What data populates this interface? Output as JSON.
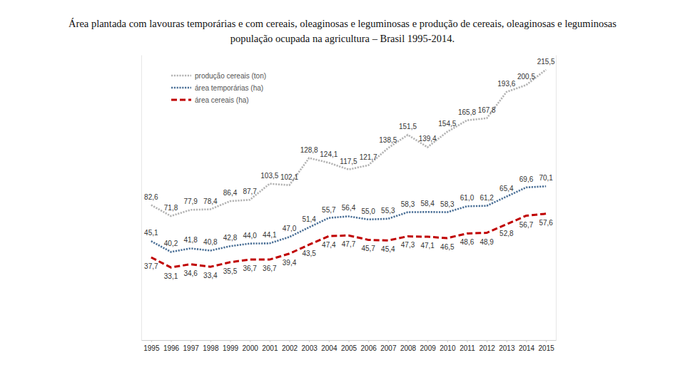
{
  "chart_data": {
    "type": "line",
    "title": [
      "Área plantada com lavouras temporárias e com cereais, oleaginosas e leguminosas e produção de cereais, oleaginosas e leguminosas",
      "população ocupada na agricultura – Brasil 1995-2014."
    ],
    "x": [
      1995,
      1996,
      1997,
      1998,
      1999,
      2000,
      2001,
      2002,
      2003,
      2004,
      2005,
      2006,
      2007,
      2008,
      2009,
      2010,
      2011,
      2012,
      2013,
      2014,
      2015
    ],
    "xlim": [
      1994.5,
      2015.5
    ],
    "xticks": [
      1995,
      1996,
      1997,
      1998,
      1999,
      2000,
      2001,
      2002,
      2003,
      2004,
      2005,
      2006,
      2007,
      2008,
      2009,
      2010,
      2011,
      2012,
      2013,
      2014,
      2015
    ],
    "ylim": [
      0,
      130
    ],
    "y2lim": [
      -50,
      230
    ],
    "tick_labels": "x",
    "data_labels": true,
    "legend": "top-left",
    "series": [
      {
        "name": "produção cereais (ton)",
        "color": "#b3b3b3",
        "line_style": "dotted",
        "axis": "y2",
        "values": [
          82.6,
          71.8,
          77.9,
          78.4,
          86.4,
          87.7,
          103.5,
          102.1,
          128.8,
          124.1,
          117.5,
          121.7,
          138.5,
          151.5,
          139.4,
          154.5,
          165.8,
          167.8,
          193.6,
          200.5,
          215.5
        ],
        "value_labels": [
          "82,6",
          "71,8",
          "77,9",
          "78,4",
          "86,4",
          "87,7",
          "103,5",
          "102,1",
          "128,8",
          "124,1",
          "117,5",
          "121,7",
          "138,5",
          "151,5",
          "139,4",
          "154,5",
          "165,8",
          "167,8",
          "193,6",
          "200,5",
          "215,5"
        ]
      },
      {
        "name": "área temporárias (ha)",
        "color": "#4a6f96",
        "line_style": "dotted",
        "values": [
          45.1,
          40.2,
          41.8,
          40.8,
          42.8,
          44.0,
          44.1,
          47.0,
          51.4,
          55.7,
          56.4,
          55.0,
          55.3,
          58.3,
          58.4,
          58.3,
          61.0,
          61.2,
          65.4,
          69.6,
          70.1
        ],
        "value_labels": [
          "45,1",
          "40,2",
          "41,8",
          "40,8",
          "42,8",
          "44,0",
          "44,1",
          "47,0",
          "51,4",
          "55,7",
          "56,4",
          "55,0",
          "55,3",
          "58,3",
          "58,4",
          "58,3",
          "61,0",
          "61,2",
          "65,4",
          "69,6",
          "70,1"
        ]
      },
      {
        "name": "área cereais (ha)",
        "color": "#c00000",
        "line_style": "dashed",
        "values": [
          37.7,
          33.1,
          34.6,
          33.4,
          35.5,
          36.7,
          36.7,
          39.4,
          43.5,
          47.4,
          47.7,
          45.7,
          45.4,
          47.3,
          47.1,
          46.5,
          48.6,
          48.9,
          52.8,
          56.7,
          57.6
        ],
        "value_labels": [
          "37,7",
          "33,1",
          "34,6",
          "33,4",
          "35,5",
          "36,7",
          "36,7",
          "39,4",
          "43,5",
          "47,4",
          "47,7",
          "45,7",
          "45,4",
          "47,3",
          "47,1",
          "46,5",
          "48,6",
          "48,9",
          "52,8",
          "56,7",
          "57,6"
        ]
      }
    ]
  }
}
